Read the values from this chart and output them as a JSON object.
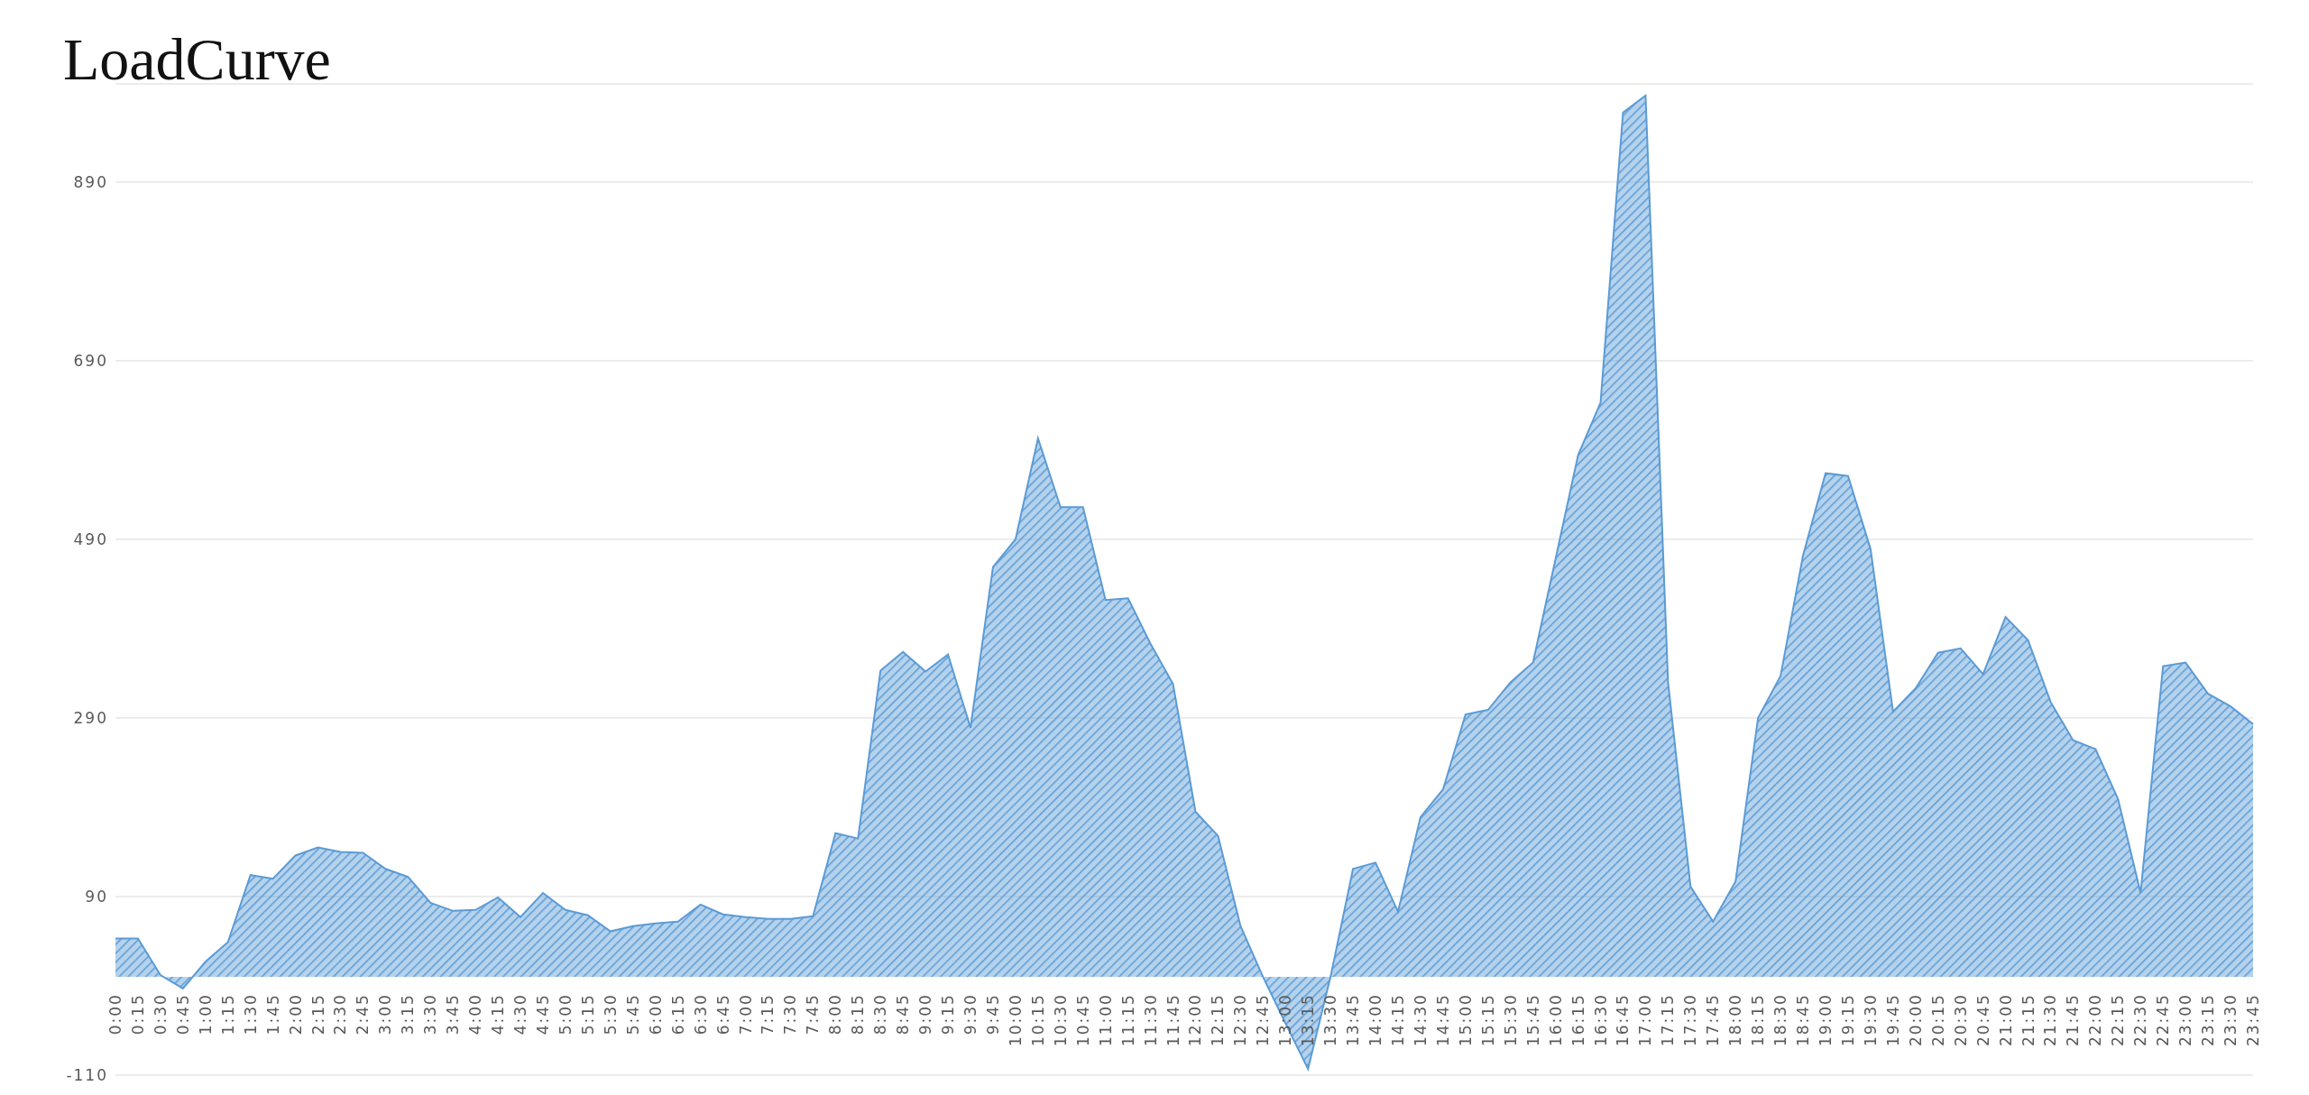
{
  "chart_data": {
    "type": "area",
    "title": "LoadCurve",
    "categories": [
      "0:00",
      "0:15",
      "0:30",
      "0:45",
      "1:00",
      "1:15",
      "1:30",
      "1:45",
      "2:00",
      "2:15",
      "2:30",
      "2:45",
      "3:00",
      "3:15",
      "3:30",
      "3:45",
      "4:00",
      "4:15",
      "4:30",
      "4:45",
      "5:00",
      "5:15",
      "5:30",
      "5:45",
      "6:00",
      "6:15",
      "6:30",
      "6:45",
      "7:00",
      "7:15",
      "7:30",
      "7:45",
      "8:00",
      "8:15",
      "8:30",
      "8:45",
      "9:00",
      "9:15",
      "9:30",
      "9:45",
      "10:00",
      "10:15",
      "10:30",
      "10:45",
      "11:00",
      "11:15",
      "11:30",
      "11:45",
      "12:00",
      "12:15",
      "12:30",
      "12:45",
      "13:00",
      "13:15",
      "13:30",
      "13:45",
      "14:00",
      "14:15",
      "14:30",
      "14:45",
      "15:00",
      "15:15",
      "15:30",
      "15:45",
      "16:00",
      "16:15",
      "16:30",
      "16:45",
      "17:00",
      "17:15",
      "17:30",
      "17:45",
      "18:00",
      "18:15",
      "18:30",
      "18:45",
      "19:00",
      "19:15",
      "19:30",
      "19:45",
      "20:00",
      "20:15",
      "20:30",
      "20:45",
      "21:00",
      "21:15",
      "21:30",
      "21:45",
      "22:00",
      "22:15",
      "22:30",
      "22:45",
      "23:00",
      "23:15",
      "23:30",
      "23:45"
    ],
    "values": [
      43,
      43,
      2,
      -13,
      17,
      39,
      114,
      110,
      136,
      145,
      140,
      139,
      121,
      112,
      83,
      74,
      75,
      89,
      67,
      94,
      75,
      69,
      51,
      57,
      60,
      62,
      81,
      70,
      67,
      65,
      65,
      68,
      161,
      155,
      343,
      364,
      342,
      361,
      279,
      459,
      490,
      603,
      526,
      526,
      422,
      424,
      373,
      328,
      185,
      158,
      57,
      0,
      -52,
      -103,
      0,
      121,
      128,
      73,
      179,
      210,
      294,
      299,
      330,
      352,
      468,
      584,
      643,
      968,
      987,
      330,
      101,
      62,
      107,
      290,
      337,
      472,
      564,
      561,
      479,
      297,
      323,
      363,
      368,
      339,
      403,
      377,
      308,
      265,
      255,
      199,
      94,
      348,
      352,
      317,
      303,
      283
    ],
    "color": "#5b9bd5",
    "ylim": [
      -110,
      1000
    ],
    "yticks": [
      -110,
      90,
      290,
      490,
      690,
      890
    ],
    "grid": "y"
  }
}
